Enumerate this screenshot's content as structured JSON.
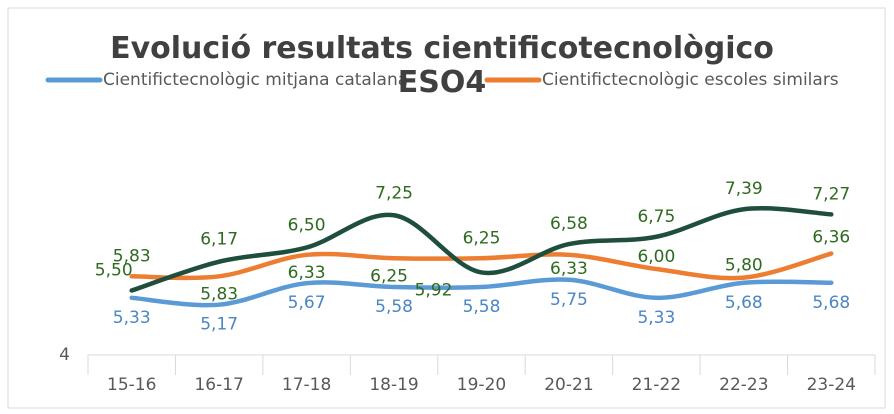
{
  "chart_data": {
    "type": "line",
    "title": "Evolució resultats cientificotecnològico ESO4",
    "categories": [
      "15-16",
      "16-17",
      "17-18",
      "18-19",
      "19-20",
      "20-21",
      "21-22",
      "22-23",
      "23-24"
    ],
    "series": [
      {
        "name": "Cientifictecnològic mitjana catalana",
        "color": "#5b9bd5",
        "label_color": "#4a86c5",
        "values": [
          5.33,
          5.17,
          5.67,
          5.58,
          5.58,
          5.75,
          5.33,
          5.68,
          5.68
        ],
        "value_labels": [
          "5,33",
          "5,17",
          "5,67",
          "5,58",
          "5,58",
          "5,75",
          "5,33",
          "5,68",
          "5,68"
        ]
      },
      {
        "name": "Cientifictecnològic escoles similars",
        "color": "#ed7d31",
        "label_color": "#2e6b1f",
        "values": [
          5.83,
          5.83,
          6.33,
          6.25,
          6.25,
          6.33,
          6.0,
          5.8,
          6.36
        ],
        "value_labels": [
          "5,83",
          "5,83",
          "6,33",
          "6,25",
          "6,25",
          "6,33",
          "6,00",
          "5,80",
          "6,36"
        ]
      },
      {
        "color": "#1f4e3d",
        "label_color": "#2e6b1f",
        "values": [
          5.5,
          6.17,
          6.5,
          7.25,
          5.92,
          6.58,
          6.75,
          7.39,
          7.27
        ],
        "value_labels": [
          "5,50",
          "6,17",
          "6,50",
          "7,25",
          "5,92",
          "6,58",
          "6,75",
          "7,39",
          "7,27"
        ]
      }
    ],
    "ylim": [
      4,
      8
    ],
    "yticks": [
      4
    ]
  }
}
